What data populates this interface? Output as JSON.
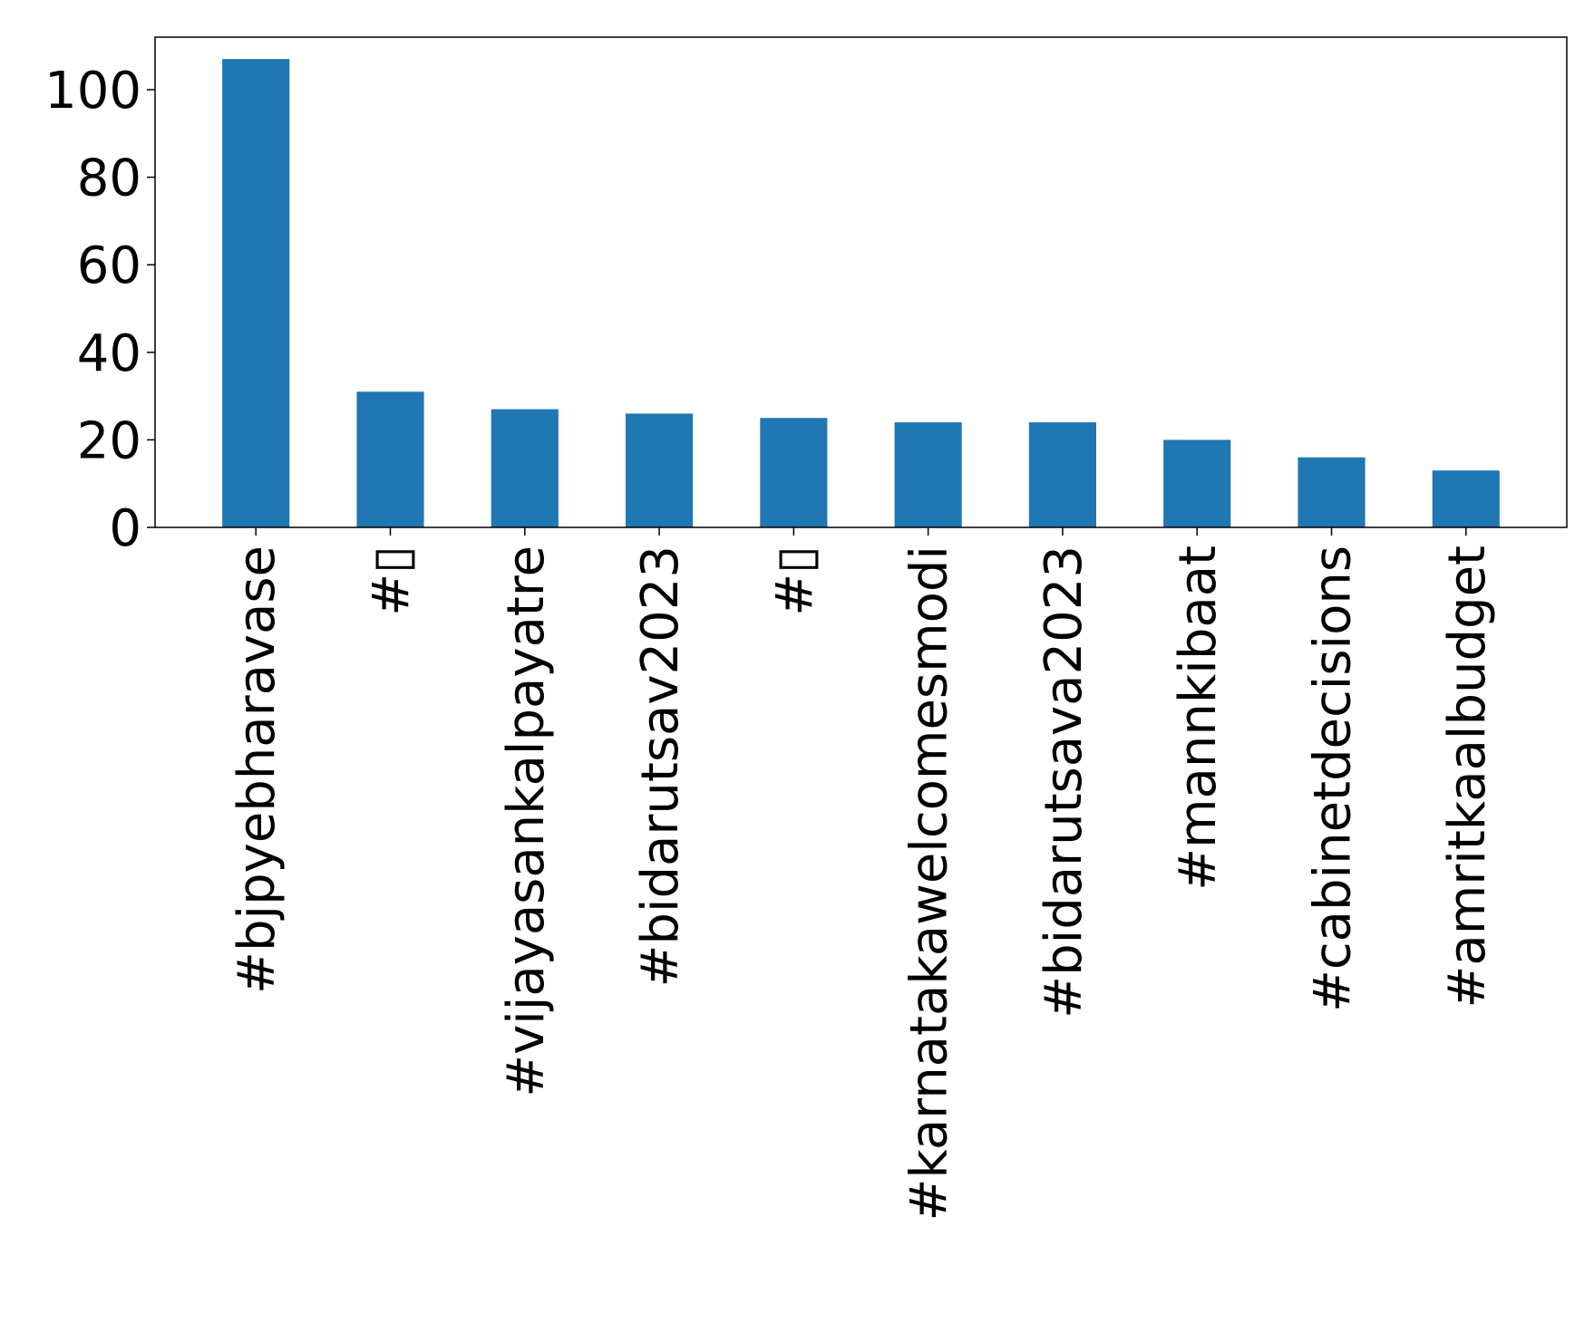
{
  "chart_data": {
    "type": "bar",
    "title": "",
    "xlabel": "",
    "ylabel": "",
    "categories": [
      "#bjpyebharavase",
      "#▯",
      "#vijayasankalpayatre",
      "#bidarutsav2023",
      "#▯",
      "#karnatakawelcomesmodi",
      "#bidarutsava2023",
      "#mannkibaat",
      "#cabinetdecisions",
      "#amritkaalbudget"
    ],
    "values": [
      107,
      31,
      27,
      26,
      25,
      24,
      24,
      20,
      16,
      13
    ],
    "ylim": [
      0,
      112
    ],
    "yticks": [
      0,
      20,
      40,
      60,
      80,
      100
    ],
    "bar_color": "#1f77b4",
    "grid": false,
    "legend": "none"
  }
}
